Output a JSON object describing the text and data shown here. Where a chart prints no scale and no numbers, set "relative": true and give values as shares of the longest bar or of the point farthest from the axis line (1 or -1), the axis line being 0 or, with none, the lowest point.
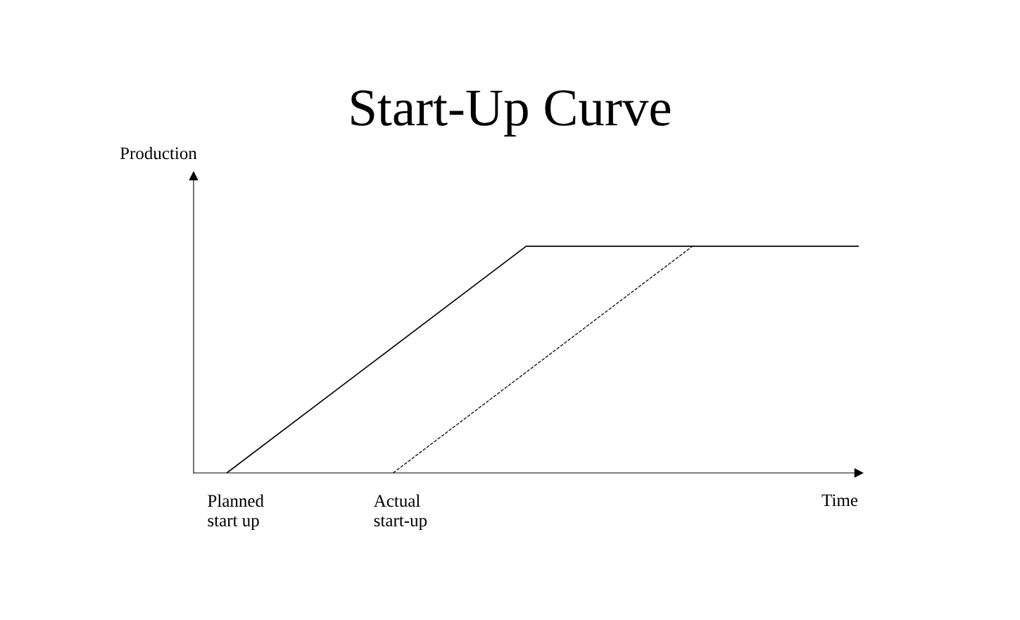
{
  "chart_data": {
    "type": "line",
    "title": "Start-Up Curve",
    "xlabel": "Time",
    "ylabel": "Production",
    "relative": true,
    "categories": [
      null,
      null,
      null,
      null,
      null,
      null,
      null,
      null,
      null,
      null,
      null,
      null,
      null,
      null,
      null,
      null,
      null,
      null,
      null,
      null,
      null
    ],
    "series": [
      {
        "color": "#000000",
        "line_style": "solid",
        "values": [
          null,
          0,
          null,
          null,
          null,
          null,
          null,
          null,
          null,
          null,
          1,
          null,
          null,
          null,
          null,
          null,
          null,
          null,
          null,
          null,
          1
        ]
      },
      {
        "color": "#000000",
        "line_style": "dashed",
        "values": [
          null,
          null,
          null,
          null,
          null,
          null,
          0,
          null,
          null,
          null,
          null,
          null,
          null,
          null,
          null,
          1,
          null,
          null,
          null,
          null,
          null
        ]
      }
    ],
    "annotations": [
      "Planned\nstart up",
      "Actual\nstart-up"
    ],
    "grid": false,
    "legend": false,
    "marker": "none"
  }
}
